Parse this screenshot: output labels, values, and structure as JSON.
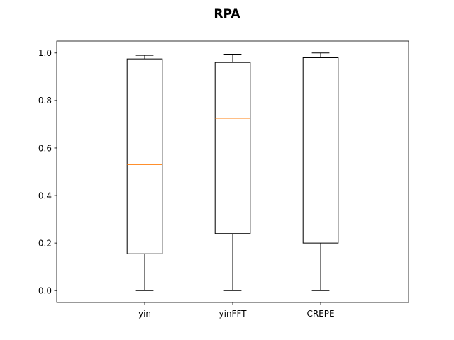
{
  "chart_data": {
    "type": "box",
    "title": "RPA",
    "xlabel": "",
    "ylabel": "",
    "categories": [
      "yin",
      "yinFFT",
      "CREPE"
    ],
    "boxes": [
      {
        "name": "yin",
        "whisker_low": 0.0,
        "q1": 0.155,
        "median": 0.53,
        "q3": 0.975,
        "whisker_high": 0.99
      },
      {
        "name": "yinFFT",
        "whisker_low": 0.0,
        "q1": 0.24,
        "median": 0.725,
        "q3": 0.96,
        "whisker_high": 0.995
      },
      {
        "name": "CREPE",
        "whisker_low": 0.0,
        "q1": 0.2,
        "median": 0.84,
        "q3": 0.98,
        "whisker_high": 1.0
      }
    ],
    "ylim": [
      -0.05,
      1.05
    ],
    "yticks": [
      0.0,
      0.2,
      0.4,
      0.6,
      0.8,
      1.0
    ],
    "ytick_labels": [
      "0.0",
      "0.2",
      "0.4",
      "0.6",
      "0.8",
      "1.0"
    ],
    "grid": false,
    "colors": {
      "box": "#000000",
      "median": "#ff7f0e",
      "background": "#ffffff"
    }
  }
}
